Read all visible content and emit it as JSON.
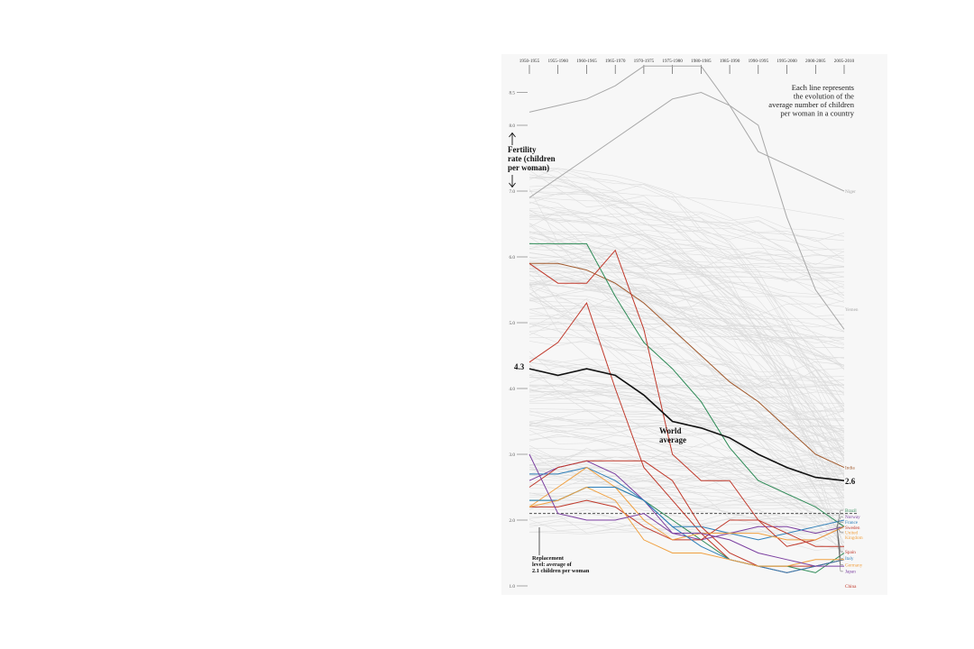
{
  "chart_data": {
    "type": "line",
    "title": "Fertility rate (children per woman)",
    "note": "Each line represents the evolution of the average number of children per woman in a country",
    "note_lines": [
      "Each line represents",
      "the evolution of the",
      "average number of children",
      "per woman in a country"
    ],
    "ylabel_lines": [
      "Fertility",
      "rate (children",
      "per woman)"
    ],
    "x": [
      "1950-1955",
      "1955-1960",
      "1960-1965",
      "1965-1970",
      "1970-1975",
      "1975-1980",
      "1980-1985",
      "1985-1990",
      "1990-1995",
      "1995-2000",
      "2000-2005",
      "2005-2010"
    ],
    "y_ticks": [
      1.0,
      2.0,
      3.0,
      4.0,
      5.0,
      6.0,
      7.0,
      8.0,
      8.5
    ],
    "y_tick_labels": [
      "1.0",
      "2.0",
      "3.0",
      "4.0",
      "5.0",
      "6.0",
      "7.0",
      "8.0",
      "8.5"
    ],
    "ylim": [
      1.0,
      8.5
    ],
    "replacement_level": 2.1,
    "replacement_label_lines": [
      "Replacement",
      "level: average of",
      "2.1 children per woman"
    ],
    "world_average": {
      "label_lines": [
        "World",
        "average"
      ],
      "start_label": "4.3",
      "end_label": "2.6",
      "values": [
        4.3,
        4.2,
        4.3,
        4.2,
        3.9,
        3.5,
        3.4,
        3.25,
        3.0,
        2.8,
        2.65,
        2.6
      ],
      "color": "#111111"
    },
    "series": [
      {
        "name": "Niger",
        "color": "#a8a8a8",
        "values": [
          8.2,
          8.3,
          8.4,
          8.6,
          8.9,
          8.9,
          8.9,
          8.3,
          7.6,
          7.4,
          7.2,
          7.0
        ]
      },
      {
        "name": "Yemen",
        "color": "#a8a8a8",
        "values": [
          6.9,
          7.2,
          7.5,
          7.8,
          8.1,
          8.4,
          8.5,
          8.3,
          8.0,
          6.6,
          5.5,
          4.9
        ]
      },
      {
        "name": "India",
        "color": "#a0582b",
        "values": [
          5.9,
          5.9,
          5.8,
          5.6,
          5.3,
          4.9,
          4.5,
          4.1,
          3.8,
          3.4,
          3.0,
          2.8
        ]
      },
      {
        "name": "",
        "color": "#2e8b57",
        "values": [
          6.2,
          6.2,
          6.2,
          5.4,
          4.7,
          4.3,
          3.8,
          3.1,
          2.6,
          2.4,
          2.2,
          1.9
        ]
      },
      {
        "name": "",
        "color": "#c0392b",
        "values": [
          4.4,
          4.7,
          5.3,
          4.0,
          2.8,
          2.3,
          1.8,
          1.4,
          1.3,
          1.3,
          1.3,
          1.4
        ]
      },
      {
        "name": "Brazil",
        "color": "#2e8b57",
        "values": [
          2.3,
          2.3,
          2.5,
          2.5,
          2.3,
          2.0,
          1.7,
          1.4,
          1.3,
          1.3,
          1.2,
          1.5
        ]
      },
      {
        "name": "Norway",
        "color": "#7b3fa0",
        "values": [
          2.6,
          2.8,
          2.9,
          2.7,
          2.3,
          1.8,
          1.7,
          1.8,
          1.9,
          1.9,
          1.8,
          1.9
        ]
      },
      {
        "name": "France",
        "color": "#2f7fb8",
        "values": [
          2.7,
          2.7,
          2.8,
          2.6,
          2.3,
          1.9,
          1.9,
          1.8,
          1.7,
          1.8,
          1.9,
          2.0
        ]
      },
      {
        "name": "Sweden",
        "color": "#c0392b",
        "values": [
          2.2,
          2.2,
          2.3,
          2.2,
          1.9,
          1.7,
          1.7,
          2.0,
          2.0,
          1.6,
          1.7,
          1.9
        ]
      },
      {
        "name": "United Kingdom",
        "color": "#f0a040",
        "values": [
          2.2,
          2.5,
          2.8,
          2.5,
          2.0,
          1.7,
          1.8,
          1.8,
          1.8,
          1.7,
          1.7,
          1.9
        ]
      },
      {
        "name": "Spain",
        "color": "#c0392b",
        "values": [
          2.5,
          2.8,
          2.9,
          2.9,
          2.9,
          2.6,
          1.9,
          1.5,
          1.3,
          1.2,
          1.3,
          1.4
        ]
      },
      {
        "name": "Italy",
        "color": "#2f7fb8",
        "values": [
          2.3,
          2.3,
          2.5,
          2.5,
          2.3,
          1.9,
          1.6,
          1.4,
          1.3,
          1.2,
          1.3,
          1.4
        ]
      },
      {
        "name": "Germany",
        "color": "#f0a040",
        "values": [
          2.2,
          2.3,
          2.5,
          2.3,
          1.7,
          1.5,
          1.5,
          1.4,
          1.3,
          1.3,
          1.4,
          1.4
        ]
      },
      {
        "name": "Japan",
        "color": "#7b3fa0",
        "values": [
          3.0,
          2.1,
          2.0,
          2.0,
          2.1,
          1.8,
          1.8,
          1.7,
          1.5,
          1.4,
          1.3,
          1.3
        ]
      },
      {
        "name": "China",
        "color": "#c0392b",
        "values": [
          5.9,
          5.6,
          5.6,
          6.1,
          4.9,
          3.0,
          2.6,
          2.6,
          2.0,
          1.8,
          1.6,
          1.6
        ]
      }
    ],
    "end_labels": [
      {
        "name": "Niger",
        "value": 7.0,
        "color": "#a8a8a8"
      },
      {
        "name": "Yemen",
        "value": 5.2,
        "color": "#a8a8a8"
      },
      {
        "name": "India",
        "value": 2.8,
        "color": "#a0582b"
      },
      {
        "name": "Brazil",
        "value": 2.15,
        "color": "#2e8b57"
      },
      {
        "name": "Norway",
        "value": 2.05,
        "color": "#7b3fa0"
      },
      {
        "name": "France",
        "value": 1.97,
        "color": "#2f7fb8"
      },
      {
        "name": "Sweden",
        "value": 1.89,
        "color": "#c0392b"
      },
      {
        "name": "United",
        "value": 1.81,
        "color": "#f0a040"
      },
      {
        "name": "Kingdom",
        "value": 1.74,
        "color": "#f0a040"
      },
      {
        "name": "Spain",
        "value": 1.52,
        "color": "#c0392b"
      },
      {
        "name": "Italy",
        "value": 1.42,
        "color": "#2f7fb8"
      },
      {
        "name": "Germany",
        "value": 1.32,
        "color": "#f0a040"
      },
      {
        "name": "Japan",
        "value": 1.22,
        "color": "#7b3fa0"
      },
      {
        "name": "China",
        "value": 1.0,
        "color": "#c0392b"
      }
    ]
  }
}
